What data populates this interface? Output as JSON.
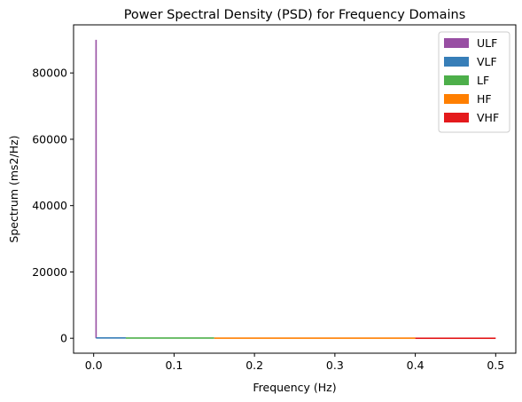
{
  "chart_data": {
    "type": "line",
    "title": "Power Spectral Density (PSD) for Frequency Domains",
    "xlabel": "Frequency (Hz)",
    "ylabel": "Spectrum (ms2/Hz)",
    "xlim": [
      -0.025,
      0.525
    ],
    "ylim": [
      -4500,
      94500
    ],
    "xticks": [
      0.0,
      0.1,
      0.2,
      0.3,
      0.4,
      0.5
    ],
    "xtick_labels": [
      "0.0",
      "0.1",
      "0.2",
      "0.3",
      "0.4",
      "0.5"
    ],
    "yticks": [
      0,
      20000,
      40000,
      60000,
      80000
    ],
    "ytick_labels": [
      "0",
      "20000",
      "40000",
      "60000",
      "80000"
    ],
    "grid": false,
    "legend": "top-right",
    "series": [
      {
        "name": "ULF",
        "color": "#984ea3",
        "x": [
          0.003,
          0.003,
          0.003
        ],
        "y": [
          0,
          90000,
          0
        ]
      },
      {
        "name": "VLF",
        "color": "#377eb8",
        "x": [
          0.003,
          0.04
        ],
        "y": [
          100,
          100
        ]
      },
      {
        "name": "LF",
        "color": "#4daf4a",
        "x": [
          0.04,
          0.15
        ],
        "y": [
          60,
          60
        ]
      },
      {
        "name": "HF",
        "color": "#ff7f00",
        "x": [
          0.15,
          0.4
        ],
        "y": [
          30,
          30
        ]
      },
      {
        "name": "VHF",
        "color": "#e41a1c",
        "x": [
          0.4,
          0.5
        ],
        "y": [
          10,
          10
        ]
      }
    ]
  }
}
